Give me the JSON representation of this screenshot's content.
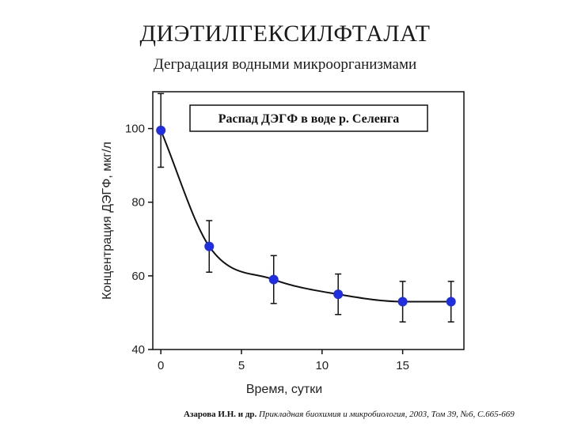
{
  "slide": {
    "title": "ДИЭТИЛГЕКСИЛФТАЛАТ",
    "subtitle": "Деградация водными микроорганизмами",
    "citation_authors": "Азарова И.Н. и др.",
    "citation_journal": "Прикладная биохимия и микробиология, 2003, Том 39, №6, С.665-669"
  },
  "chart_data": {
    "type": "scatter",
    "title": "Распад ДЭГФ в воде р. Селенга",
    "xlabel": "Время, сутки",
    "ylabel": "Концентрация ДЭГФ, мкг/л",
    "xlim": [
      -0.5,
      18.8
    ],
    "ylim": [
      40,
      110
    ],
    "xticks": [
      0,
      5,
      10,
      15
    ],
    "yticks": [
      40,
      60,
      80,
      100
    ],
    "grid": false,
    "series": [
      {
        "x": [
          0,
          3,
          7,
          11,
          15,
          18
        ],
        "y": [
          99.5,
          68,
          59,
          55,
          53,
          53
        ],
        "error": [
          10,
          7,
          6.5,
          5.5,
          5.5,
          5.5
        ],
        "marker_color": "#1f2ee0",
        "fit_curve": true
      }
    ]
  }
}
